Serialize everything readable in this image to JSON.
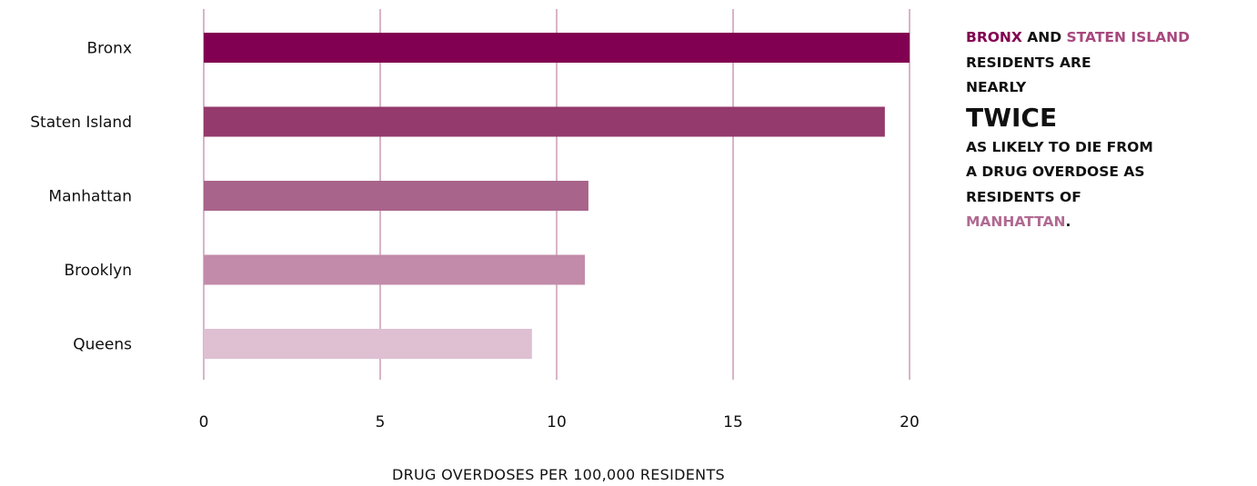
{
  "chart_data": {
    "type": "bar",
    "orientation": "horizontal",
    "categories": [
      "Bronx",
      "Staten Island",
      "Manhattan",
      "Brooklyn",
      "Queens"
    ],
    "values": [
      20.0,
      19.3,
      10.9,
      10.8,
      9.3
    ],
    "colors": [
      "#820051",
      "#943a6c",
      "#a8648a",
      "#c28ba9",
      "#dfbfd2"
    ],
    "xlabel": "DRUG OVERDOSES PER 100,000 RESIDENTS",
    "ylabel": "",
    "xlim": [
      0,
      20
    ],
    "xticks": [
      "0",
      "5",
      "10",
      "15",
      "20"
    ],
    "grid": "vertical",
    "grid_color": "#b06a92"
  },
  "annotation": {
    "bronx": "BRONX",
    "and": " AND ",
    "staten_island": "STATEN ISLAND",
    "line2": "RESIDENTS ARE",
    "line3": "NEARLY",
    "emphasis": "TWICE",
    "line5": "AS LIKELY TO DIE FROM",
    "line6": "A DRUG OVERDOSE AS",
    "line7": "RESIDENTS OF",
    "manhattan": "MANHATTAN",
    "period": ".",
    "colors": {
      "bronx": "#820051",
      "staten_island": "#a8487d",
      "manhattan": "#b06a92"
    }
  }
}
